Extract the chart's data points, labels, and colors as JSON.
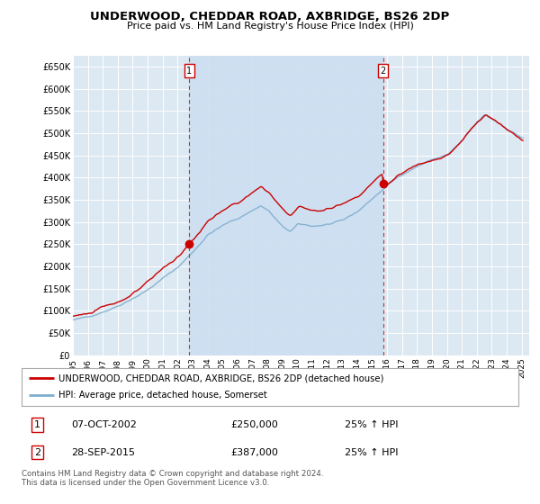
{
  "title": "UNDERWOOD, CHEDDAR ROAD, AXBRIDGE, BS26 2DP",
  "subtitle": "Price paid vs. HM Land Registry's House Price Index (HPI)",
  "ylim": [
    0,
    675000
  ],
  "xlim_start": 1995.0,
  "xlim_end": 2025.5,
  "legend_line1": "UNDERWOOD, CHEDDAR ROAD, AXBRIDGE, BS26 2DP (detached house)",
  "legend_line2": "HPI: Average price, detached house, Somerset",
  "marker1_date": "07-OCT-2002",
  "marker1_price": "£250,000",
  "marker1_hpi": "25% ↑ HPI",
  "marker2_date": "28-SEP-2015",
  "marker2_price": "£387,000",
  "marker2_hpi": "25% ↑ HPI",
  "footnote": "Contains HM Land Registry data © Crown copyright and database right 2024.\nThis data is licensed under the Open Government Licence v3.0.",
  "line_color_red": "#cc0000",
  "line_color_blue": "#7eaecf",
  "background_color": "#dce8f2",
  "highlight_color": "#ccdff0",
  "grid_color": "#c8d8e8",
  "marker1_x": 2002.77,
  "marker1_y": 250000,
  "marker2_x": 2015.74,
  "marker2_y": 387000
}
